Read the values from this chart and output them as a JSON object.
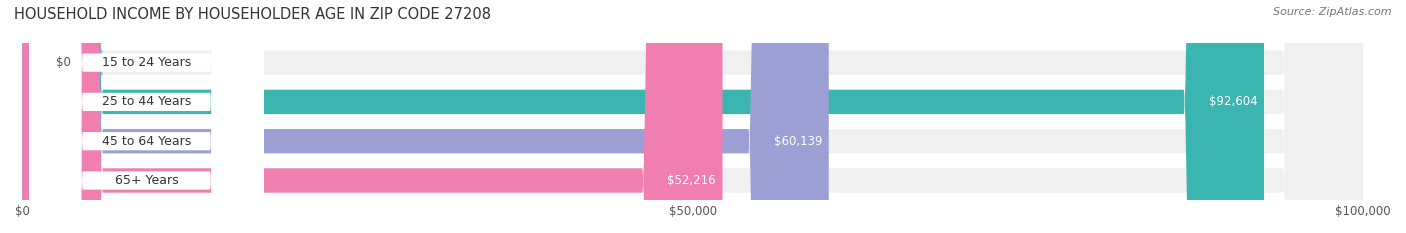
{
  "title": "HOUSEHOLD INCOME BY HOUSEHOLDER AGE IN ZIP CODE 27208",
  "source": "Source: ZipAtlas.com",
  "categories": [
    "15 to 24 Years",
    "25 to 44 Years",
    "45 to 64 Years",
    "65+ Years"
  ],
  "values": [
    0,
    92604,
    60139,
    52216
  ],
  "bar_colors": [
    "#c9a8d4",
    "#3ab5b0",
    "#9b9fd4",
    "#f07eb0"
  ],
  "bar_bg_color": "#f0f0f0",
  "label_bg_color": "#ffffff",
  "xlim": [
    0,
    100000
  ],
  "xticks": [
    0,
    50000,
    100000
  ],
  "xtick_labels": [
    "$0",
    "$50,000",
    "$100,000"
  ],
  "value_label_color": "#ffffff",
  "bar_height": 0.62,
  "figsize": [
    14.06,
    2.33
  ],
  "dpi": 100
}
